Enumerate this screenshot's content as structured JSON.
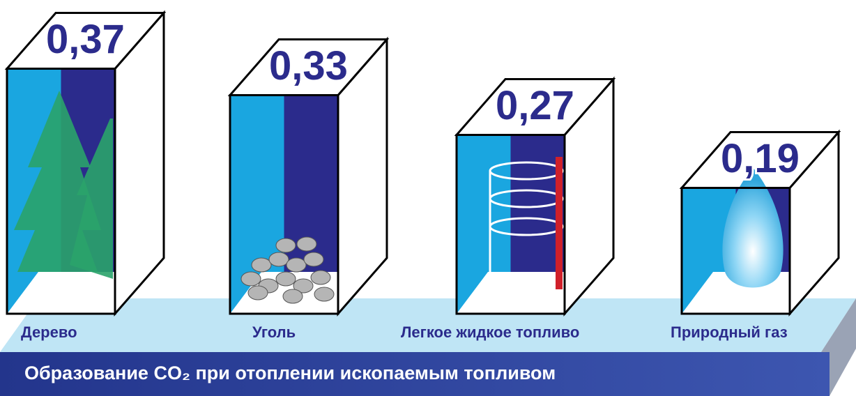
{
  "chart_data": {
    "type": "bar",
    "title": "Образование CO₂ при отоплении ископаемым топливом",
    "categories": [
      "Дерево",
      "Уголь",
      "Легкое жидкое топливо",
      "Природный газ"
    ],
    "values": [
      0.37,
      0.33,
      0.27,
      0.19
    ],
    "value_labels": [
      "0,37",
      "0,33",
      "0,27",
      "0,19"
    ],
    "colors": [
      "#1aa6e0",
      "#2b2b8c"
    ]
  }
}
